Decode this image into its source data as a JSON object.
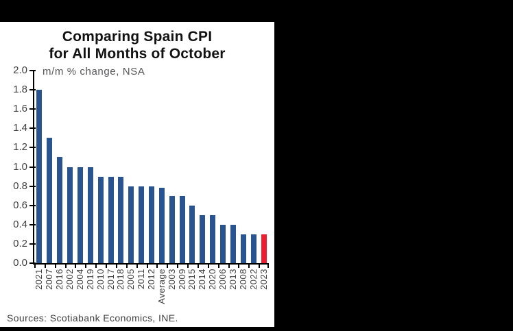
{
  "window": {
    "background_color": "#000000",
    "panel_color": "#ffffff"
  },
  "source_note": "Sources: Scotiabank Economics, INE.",
  "chart_data": {
    "type": "bar",
    "title_lines": [
      "Comparing Spain CPI",
      "for All Months of October"
    ],
    "subtitle": "m/m % change, NSA",
    "categories": [
      "2021",
      "2007",
      "2016",
      "2002",
      "2004",
      "2019",
      "2010",
      "2017",
      "2018",
      "2005",
      "2011",
      "2012",
      "Average",
      "2003",
      "2009",
      "2015",
      "2014",
      "2020",
      "2006",
      "2013",
      "2008",
      "2022",
      "2023"
    ],
    "values": [
      1.8,
      1.3,
      1.1,
      1.0,
      1.0,
      1.0,
      0.9,
      0.9,
      0.9,
      0.8,
      0.8,
      0.8,
      0.78,
      0.7,
      0.7,
      0.6,
      0.5,
      0.5,
      0.4,
      0.4,
      0.3,
      0.3,
      0.3
    ],
    "highlight_index": 22,
    "colors": {
      "bar": "#2A5490",
      "highlight": "#EE1C2E",
      "axis": "#000000",
      "tick_label": "#3F4042"
    },
    "ylim": [
      0,
      2.0
    ],
    "ytick_step": 0.2,
    "yticks": [
      "2.0",
      "1.8",
      "1.6",
      "1.4",
      "1.2",
      "1.0",
      "0.8",
      "0.6",
      "0.4",
      "0.2",
      "0.0"
    ],
    "grid": false,
    "legend": false,
    "xlabel": "",
    "ylabel": ""
  }
}
